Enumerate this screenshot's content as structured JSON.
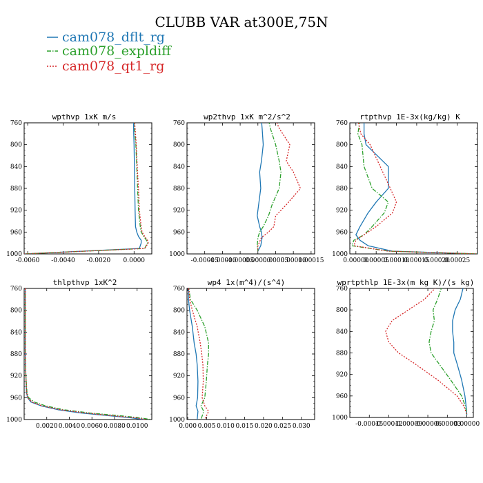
{
  "title": "CLUBB VAR at300E,75N",
  "colors": {
    "dflt": "#1f77b4",
    "expl": "#2ca02c",
    "qt1": "#d62728"
  },
  "legend": [
    {
      "name": "cam078_dflt_rg",
      "color": "#1f77b4",
      "dash": "solid"
    },
    {
      "name": "cam078_expldiff",
      "color": "#2ca02c",
      "dash": "dashdot"
    },
    {
      "name": "cam078_qt1_rg",
      "color": "#d62728",
      "dash": "dotted"
    }
  ],
  "chart_data": [
    {
      "type": "line",
      "title": "wpthvp  1xK m/s",
      "xlim": [
        -0.0062,
        0.001
      ],
      "ylim": [
        760,
        1000
      ],
      "y_inverted": true,
      "y_ticks": [
        760,
        800,
        840,
        880,
        920,
        960,
        1000
      ],
      "x_ticks": [
        -0.006,
        -0.004,
        -0.002,
        0.0
      ],
      "x_tick_labels": [
        "-0.0060",
        "-0.0040",
        "-0.0020",
        "0.0000"
      ],
      "series": [
        {
          "name": "cam078_dflt_rg",
          "x": [
            -3e-05,
            -2e-05,
            0.0,
            2e-05,
            4e-05,
            6e-05,
            8e-05,
            0.00015,
            0.00025,
            0.0004,
            0.0004,
            0.0003,
            -0.0062
          ],
          "y": [
            755,
            780,
            800,
            840,
            880,
            920,
            950,
            960,
            968,
            975,
            980,
            990,
            1000
          ]
        },
        {
          "name": "cam078_expldiff",
          "x": [
            0.0,
            5e-05,
            0.0001,
            0.00015,
            0.0002,
            0.00025,
            0.00035,
            0.0004,
            0.00055,
            0.0007,
            0.00075,
            0.0006,
            -0.0062
          ],
          "y": [
            755,
            780,
            800,
            840,
            880,
            920,
            950,
            960,
            968,
            975,
            980,
            990,
            1000
          ]
        },
        {
          "name": "cam078_qt1_rg",
          "x": [
            2e-05,
            8e-05,
            0.00012,
            0.00018,
            0.00025,
            0.0003,
            0.0004,
            0.00045,
            0.0006,
            0.00075,
            0.0008,
            0.0006,
            -0.0062
          ],
          "y": [
            755,
            780,
            800,
            840,
            880,
            920,
            950,
            960,
            968,
            975,
            980,
            990,
            1000
          ]
        }
      ]
    },
    {
      "type": "line",
      "title": "wp2thvp  1xK m^2/s^2",
      "xlim": [
        -0.0002,
        0.00016
      ],
      "ylim": [
        760,
        1000
      ],
      "y_inverted": true,
      "y_ticks": [
        760,
        800,
        840,
        880,
        920,
        960,
        1000
      ],
      "x_ticks": [
        -0.00015,
        -0.0001,
        -5e-05,
        0.0,
        5e-05,
        0.0001,
        0.00015
      ],
      "x_tick_labels": [
        "-0.00015",
        "-0.00010",
        "-0.00005",
        "0.00000",
        "0.00005",
        "0.00010",
        "0.00015"
      ],
      "series": [
        {
          "name": "cam078_dflt_rg",
          "x": [
            1e-05,
            1.2e-05,
            1.5e-05,
            1e-05,
            5e-06,
            8e-06,
            2e-06,
            -2e-06,
            5e-06,
            1e-05,
            1.2e-05,
            8e-06,
            0.0
          ],
          "y": [
            755,
            770,
            800,
            830,
            850,
            880,
            910,
            930,
            950,
            960,
            970,
            985,
            995
          ]
        },
        {
          "name": "cam078_expldiff",
          "x": [
            3e-05,
            3.5e-05,
            5e-05,
            6e-05,
            6.5e-05,
            6e-05,
            4e-05,
            3e-05,
            1.5e-05,
            5e-06,
            0.0,
            -2e-06,
            0.0
          ],
          "y": [
            755,
            770,
            800,
            830,
            850,
            880,
            910,
            930,
            950,
            960,
            970,
            985,
            995
          ]
        },
        {
          "name": "cam078_qt1_rg",
          "x": [
            5e-05,
            6e-05,
            9e-05,
            8e-05,
            0.0001,
            0.00012,
            8e-05,
            5e-05,
            4.5e-05,
            3e-05,
            1e-05,
            0.0,
            0.0
          ],
          "y": [
            755,
            770,
            800,
            830,
            850,
            880,
            910,
            930,
            950,
            960,
            970,
            985,
            995
          ]
        }
      ]
    },
    {
      "type": "line",
      "title": "rtpthvp  1E-3x(kg/kg) K",
      "xlim": [
        -1.5e-05,
        0.0003
      ],
      "ylim": [
        760,
        1000
      ],
      "y_inverted": true,
      "y_ticks": [
        760,
        800,
        840,
        880,
        920,
        960,
        1000
      ],
      "x_ticks": [
        0.0,
        5e-05,
        0.0001,
        0.00015,
        0.0002,
        0.00025
      ],
      "x_tick_labels": [
        "0.00000",
        "0.00005",
        "0.00010",
        "0.00015",
        "0.00020",
        "0.00025"
      ],
      "series": [
        {
          "name": "cam078_dflt_rg",
          "x": [
            2e-05,
            2e-05,
            2.5e-05,
            8e-05,
            8e-05,
            5e-05,
            3e-05,
            1e-05,
            0.0,
            1e-05,
            3e-05,
            9e-05,
            0.0003
          ],
          "y": [
            755,
            780,
            800,
            840,
            880,
            905,
            925,
            950,
            965,
            975,
            985,
            995,
            1000
          ]
        },
        {
          "name": "cam078_expldiff",
          "x": [
            1e-05,
            5e-06,
            1.5e-05,
            2e-05,
            4e-05,
            8e-05,
            7e-05,
            4e-05,
            2e-05,
            -5e-06,
            -1e-05,
            8e-05,
            0.0003
          ],
          "y": [
            755,
            780,
            800,
            840,
            880,
            905,
            925,
            950,
            965,
            975,
            985,
            995,
            1000
          ]
        },
        {
          "name": "cam078_qt1_rg",
          "x": [
            5e-06,
            1.2e-05,
            3.5e-05,
            6e-05,
            8.5e-05,
            0.0001,
            9e-05,
            5e-05,
            2e-05,
            0.0,
            -5e-06,
            8e-05,
            0.0003
          ],
          "y": [
            755,
            780,
            800,
            840,
            880,
            905,
            925,
            950,
            965,
            975,
            985,
            995,
            1000
          ]
        }
      ]
    },
    {
      "type": "line",
      "title": "thlpthvp  1xK^2",
      "xlim": [
        0.0,
        0.0113
      ],
      "ylim": [
        760,
        1000
      ],
      "y_inverted": true,
      "y_ticks": [
        760,
        800,
        840,
        880,
        920,
        960,
        1000
      ],
      "x_ticks": [
        0.002,
        0.004,
        0.006,
        0.008,
        0.01
      ],
      "x_tick_labels": [
        "0.0020",
        "0.0040",
        "0.0060",
        "0.0080",
        "0.0100"
      ],
      "series": [
        {
          "name": "cam078_dflt_rg",
          "x": [
            0.0001,
            0.0001,
            0.0001,
            0.00015,
            0.0002,
            0.0003,
            0.0006,
            0.0015,
            0.003,
            0.005,
            0.0075,
            0.0095,
            0.0106
          ],
          "y": [
            755,
            800,
            880,
            920,
            950,
            960,
            968,
            975,
            982,
            988,
            993,
            997,
            1000
          ]
        },
        {
          "name": "cam078_expldiff",
          "x": [
            0.0001,
            0.0001,
            0.0001,
            0.00015,
            0.00025,
            0.0004,
            0.0009,
            0.0019,
            0.0035,
            0.0058,
            0.0085,
            0.0103,
            0.0112
          ],
          "y": [
            755,
            800,
            880,
            920,
            950,
            960,
            968,
            975,
            982,
            988,
            993,
            997,
            1000
          ]
        },
        {
          "name": "cam078_qt1_rg",
          "x": [
            0.0001,
            0.0001,
            0.0001,
            0.00015,
            0.00022,
            0.0003,
            0.0007,
            0.0016,
            0.0032,
            0.0054,
            0.0078,
            0.0099,
            0.0108
          ],
          "y": [
            755,
            800,
            880,
            920,
            950,
            960,
            968,
            975,
            982,
            988,
            993,
            997,
            1000
          ]
        }
      ]
    },
    {
      "type": "line",
      "title": "wp4  1x(m^4)/(s^4)",
      "xlim": [
        -0.0002,
        0.0335
      ],
      "ylim": [
        760,
        1000
      ],
      "y_inverted": true,
      "y_ticks": [
        760,
        800,
        840,
        880,
        920,
        960,
        1000
      ],
      "x_ticks": [
        0.0,
        0.005,
        0.01,
        0.015,
        0.02,
        0.025,
        0.03
      ],
      "x_tick_labels": [
        "0.000",
        "0.005",
        "0.010",
        "0.015",
        "0.020",
        "0.025",
        "0.030"
      ],
      "series": [
        {
          "name": "cam078_dflt_rg",
          "x": [
            0.0002,
            0.0002,
            0.0005,
            0.0012,
            0.0017,
            0.0022,
            0.0025,
            0.0027,
            0.0026,
            0.0022,
            0.0027,
            0.0025
          ],
          "y": [
            755,
            780,
            800,
            830,
            860,
            880,
            900,
            930,
            960,
            975,
            985,
            1000
          ]
        },
        {
          "name": "cam078_expldiff",
          "x": [
            0.0002,
            0.0007,
            0.0025,
            0.0045,
            0.0055,
            0.0055,
            0.0052,
            0.0049,
            0.0045,
            0.0035,
            0.0042,
            0.0035
          ],
          "y": [
            755,
            780,
            800,
            830,
            860,
            880,
            900,
            930,
            960,
            975,
            985,
            1000
          ]
        },
        {
          "name": "cam078_qt1_rg",
          "x": [
            0.0002,
            0.0005,
            0.0012,
            0.0025,
            0.0033,
            0.0037,
            0.004,
            0.0041,
            0.0038,
            0.0045,
            0.0055,
            0.0045
          ],
          "y": [
            755,
            780,
            800,
            830,
            860,
            880,
            900,
            930,
            960,
            975,
            985,
            1000
          ]
        }
      ]
    },
    {
      "type": "line",
      "title": "wprtpthlp  1E-3x(m kg K)/(s kg)",
      "xlim": [
        -0.00018,
        1e-05
      ],
      "ylim": [
        760,
        1000
      ],
      "y_inverted": true,
      "y_ticks": [
        760,
        800,
        840,
        880,
        920,
        960,
        1000
      ],
      "x_ticks": [
        -0.00015,
        -0.00012,
        -9e-05,
        -6e-05,
        -3e-05,
        0.0
      ],
      "x_tick_labels": [
        "-0.00015",
        "-0.00012",
        "-0.00009",
        "-0.00006",
        "-0.00003",
        "0.00000"
      ],
      "series": [
        {
          "name": "cam078_dflt_rg",
          "x": [
            -5e-06,
            -1e-05,
            -1.8e-05,
            -2.2e-05,
            -2.2e-05,
            -2e-05,
            -2e-05,
            -1.5e-05,
            -8e-06,
            -3e-06,
            -1e-06,
            0.0
          ],
          "y": [
            755,
            780,
            800,
            820,
            840,
            860,
            880,
            900,
            930,
            960,
            980,
            995
          ]
        },
        {
          "name": "cam078_expldiff",
          "x": [
            -3.8e-05,
            -4.5e-05,
            -5.2e-05,
            -5e-05,
            -5.5e-05,
            -5.8e-05,
            -5.5e-05,
            -4.3e-05,
            -2.5e-05,
            -8e-06,
            -2e-06,
            0.0
          ],
          "y": [
            755,
            780,
            800,
            820,
            840,
            860,
            880,
            900,
            930,
            960,
            980,
            995
          ]
        },
        {
          "name": "cam078_qt1_rg",
          "x": [
            -4.5e-05,
            -6.5e-05,
            -9e-05,
            -0.000115,
            -0.000125,
            -0.00012,
            -0.000105,
            -8e-05,
            -4.5e-05,
            -1.5e-05,
            -4e-06,
            0.0
          ],
          "y": [
            755,
            780,
            800,
            820,
            840,
            860,
            880,
            900,
            930,
            960,
            980,
            995
          ]
        }
      ]
    }
  ]
}
